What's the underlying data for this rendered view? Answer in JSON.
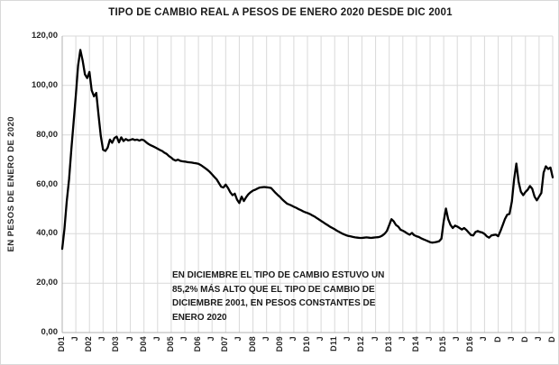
{
  "chart_data": {
    "type": "line",
    "title": "TIPO DE CAMBIO REAL A PESOS DE ENERO 2020 DESDE DIC 2001",
    "xlabel": "",
    "ylabel": "EN PESOS DE ENERO DE 2020",
    "ylim": [
      0,
      120
    ],
    "grid": true,
    "legend": "none",
    "x_description": "monthly data from December 2001 (D01) to December 2019, ticks every 6 months (D = December, J = June)",
    "x_tick_labels": [
      "D01",
      "J",
      "D02",
      "J",
      "D03",
      "J",
      "D04",
      "J",
      "D05",
      "J",
      "D06",
      "J",
      "D07",
      "J",
      "D08",
      "J",
      "D09",
      "J",
      "D10",
      "J",
      "D11",
      "J",
      "D12",
      "J",
      "D13",
      "J",
      "D14",
      "J",
      "D15",
      "J",
      "D16",
      "J",
      "D",
      "J",
      "D",
      "J",
      "D"
    ],
    "y_ticks": [
      0,
      20,
      40,
      60,
      80,
      100,
      120
    ],
    "y_tick_labels": [
      "0,00",
      "20,00",
      "40,00",
      "60,00",
      "80,00",
      "100,00",
      "120,00"
    ],
    "colors": {
      "line": "#000000",
      "grid": "#d9d9d9",
      "axis": "#b0b0b0",
      "text": "#262626"
    },
    "series": [
      {
        "name": "tipo de cambio real en pesos de enero 2020",
        "start_month": "2001-12",
        "end_month": "2019-12",
        "values": [
          33.9,
          42,
          53,
          62,
          74,
          85,
          96,
          108,
          114.4,
          110.0,
          104.5,
          103.0,
          105.5,
          98.0,
          95.6,
          97.0,
          88.0,
          79.5,
          74.0,
          73.5,
          74.8,
          78.1,
          76.8,
          78.7,
          79.3,
          77.0,
          79.0,
          77.5,
          78.3,
          77.8,
          78.0,
          78.3,
          77.9,
          78.1,
          77.7,
          78.1,
          77.8,
          77.0,
          76.3,
          75.8,
          75.4,
          74.9,
          74.4,
          73.9,
          73.5,
          72.8,
          72.3,
          71.4,
          70.8,
          70.0,
          69.6,
          70.0,
          69.5,
          69.3,
          69.2,
          69.0,
          68.9,
          68.8,
          68.6,
          68.5,
          68.3,
          67.8,
          67.2,
          66.5,
          65.8,
          65.0,
          64.0,
          63.0,
          62.0,
          60.5,
          59.0,
          58.7,
          59.9,
          58.5,
          56.8,
          55.6,
          56.2,
          53.8,
          52.4,
          55.0,
          53.2,
          54.8,
          56.0,
          56.8,
          57.5,
          57.8,
          58.3,
          58.7,
          58.8,
          58.9,
          58.8,
          58.7,
          58.5,
          57.5,
          56.5,
          55.6,
          54.8,
          53.8,
          53.0,
          52.2,
          51.8,
          51.4,
          50.9,
          50.5,
          50.0,
          49.6,
          49.1,
          48.7,
          48.4,
          48.0,
          47.5,
          47.0,
          46.4,
          45.8,
          45.2,
          44.6,
          44.0,
          43.4,
          42.8,
          42.3,
          41.8,
          41.2,
          40.7,
          40.2,
          39.8,
          39.4,
          39.1,
          38.9,
          38.7,
          38.5,
          38.4,
          38.3,
          38.3,
          38.4,
          38.5,
          38.4,
          38.3,
          38.4,
          38.5,
          38.6,
          38.8,
          39.3,
          40.0,
          41.1,
          43.5,
          45.9,
          45.0,
          43.5,
          42.9,
          41.6,
          41.2,
          40.7,
          40.1,
          39.6,
          40.3,
          39.4,
          39.0,
          38.7,
          38.2,
          37.8,
          37.4,
          37.0,
          36.6,
          36.4,
          36.5,
          36.7,
          37.0,
          38.0,
          45.0,
          50.2,
          45.9,
          43.5,
          42.3,
          43.3,
          42.9,
          42.3,
          41.7,
          42.3,
          41.5,
          40.5,
          39.5,
          39.3,
          40.7,
          41.1,
          40.7,
          40.5,
          39.9,
          38.9,
          38.4,
          39.3,
          39.5,
          39.6,
          39.0,
          41.1,
          43.5,
          46.0,
          47.7,
          48.0,
          53.0,
          62.0,
          68.4,
          61.0,
          57.0,
          55.6,
          56.9,
          57.8,
          59.3,
          58.2,
          55.0,
          53.5,
          55.0,
          56.5,
          64.7,
          67.3,
          66.2,
          66.8,
          62.8
        ]
      }
    ],
    "annotation": {
      "lines": [
        "EN DICIEMBRE EL TIPO DE CAMBIO ESTUVO UN",
        "85,2% MÁS ALTO QUE EL TIPO DE CAMBIO DE",
        "DICIEMBRE 2001, EN PESOS CONSTANTES DE",
        "ENERO 2020"
      ]
    }
  }
}
